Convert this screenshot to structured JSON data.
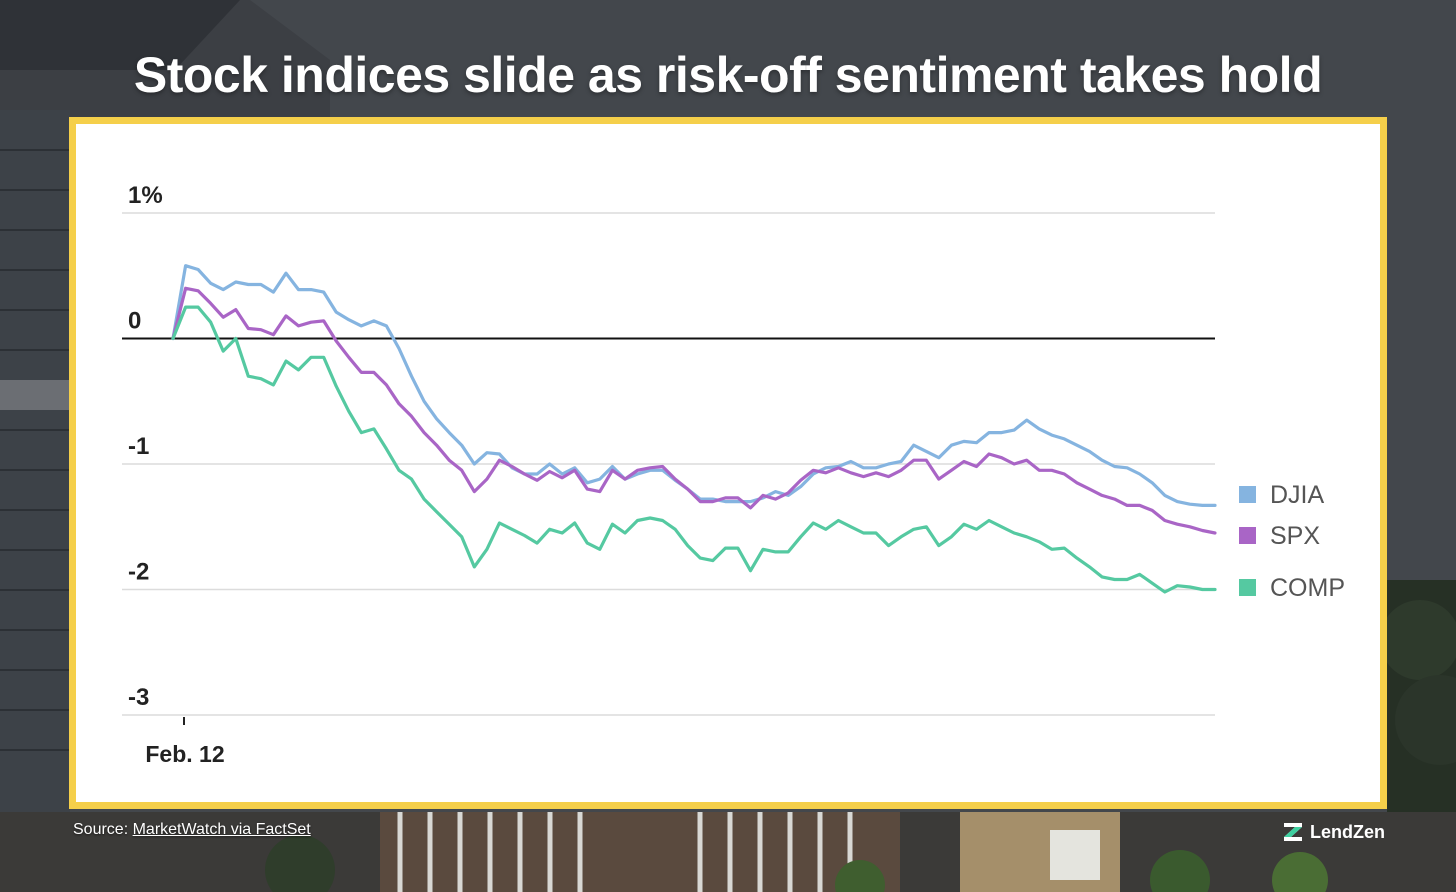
{
  "title": "Stock indices slide as risk-off sentiment takes hold",
  "source": {
    "prefix": "Source: ",
    "link_text": "MarketWatch via FactSet"
  },
  "brand": {
    "name": "LendZen"
  },
  "chart_data": {
    "type": "line",
    "title": "Stock indices slide as risk-off sentiment takes hold",
    "xlabel": "",
    "ylabel": "",
    "ylim": [
      -3,
      1
    ],
    "yticks": [
      {
        "value": 1,
        "label": "1%"
      },
      {
        "value": 0,
        "label": "0"
      },
      {
        "value": -1,
        "label": "-1"
      },
      {
        "value": -2,
        "label": "-2"
      },
      {
        "value": -3,
        "label": "-3"
      }
    ],
    "x_tick_label": "Feb. 12",
    "legend_position": "right",
    "series": [
      {
        "name": "DJIA",
        "color": "#85b4e0",
        "values": [
          0.0,
          0.58,
          0.55,
          0.44,
          0.39,
          0.45,
          0.43,
          0.43,
          0.37,
          0.52,
          0.39,
          0.39,
          0.37,
          0.21,
          0.15,
          0.1,
          0.14,
          0.1,
          -0.08,
          -0.3,
          -0.5,
          -0.64,
          -0.75,
          -0.85,
          -1.0,
          -0.91,
          -0.92,
          -1.03,
          -1.08,
          -1.08,
          -1.0,
          -1.08,
          -1.03,
          -1.15,
          -1.12,
          -1.02,
          -1.12,
          -1.08,
          -1.05,
          -1.05,
          -1.13,
          -1.2,
          -1.28,
          -1.28,
          -1.3,
          -1.3,
          -1.3,
          -1.27,
          -1.22,
          -1.25,
          -1.18,
          -1.08,
          -1.03,
          -1.02,
          -0.98,
          -1.03,
          -1.03,
          -1.0,
          -0.98,
          -0.85,
          -0.9,
          -0.95,
          -0.85,
          -0.82,
          -0.83,
          -0.75,
          -0.75,
          -0.73,
          -0.65,
          -0.72,
          -0.77,
          -0.8,
          -0.85,
          -0.9,
          -0.97,
          -1.02,
          -1.03,
          -1.08,
          -1.15,
          -1.25,
          -1.3,
          -1.32,
          -1.33,
          -1.33
        ]
      },
      {
        "name": "SPX",
        "color": "#a965c6",
        "values": [
          0.0,
          0.4,
          0.38,
          0.28,
          0.17,
          0.23,
          0.08,
          0.07,
          0.03,
          0.18,
          0.1,
          0.13,
          0.14,
          -0.02,
          -0.15,
          -0.27,
          -0.27,
          -0.37,
          -0.52,
          -0.62,
          -0.75,
          -0.85,
          -0.97,
          -1.05,
          -1.22,
          -1.12,
          -0.97,
          -1.02,
          -1.08,
          -1.13,
          -1.06,
          -1.11,
          -1.05,
          -1.2,
          -1.22,
          -1.05,
          -1.12,
          -1.05,
          -1.03,
          -1.02,
          -1.12,
          -1.2,
          -1.3,
          -1.3,
          -1.27,
          -1.27,
          -1.35,
          -1.25,
          -1.28,
          -1.23,
          -1.13,
          -1.05,
          -1.07,
          -1.03,
          -1.07,
          -1.1,
          -1.07,
          -1.1,
          -1.05,
          -0.97,
          -0.97,
          -1.12,
          -1.05,
          -0.98,
          -1.02,
          -0.92,
          -0.95,
          -1.0,
          -0.97,
          -1.05,
          -1.05,
          -1.08,
          -1.15,
          -1.2,
          -1.25,
          -1.28,
          -1.33,
          -1.33,
          -1.37,
          -1.45,
          -1.48,
          -1.5,
          -1.53,
          -1.55
        ]
      },
      {
        "name": "COMP",
        "color": "#55c9a1",
        "values": [
          0.0,
          0.25,
          0.25,
          0.13,
          -0.1,
          0.0,
          -0.3,
          -0.32,
          -0.37,
          -0.18,
          -0.25,
          -0.15,
          -0.15,
          -0.38,
          -0.58,
          -0.75,
          -0.72,
          -0.88,
          -1.05,
          -1.12,
          -1.28,
          -1.38,
          -1.48,
          -1.58,
          -1.82,
          -1.68,
          -1.47,
          -1.52,
          -1.57,
          -1.63,
          -1.52,
          -1.55,
          -1.47,
          -1.63,
          -1.68,
          -1.48,
          -1.55,
          -1.45,
          -1.43,
          -1.45,
          -1.52,
          -1.65,
          -1.75,
          -1.77,
          -1.67,
          -1.67,
          -1.85,
          -1.68,
          -1.7,
          -1.7,
          -1.58,
          -1.47,
          -1.52,
          -1.45,
          -1.5,
          -1.55,
          -1.55,
          -1.65,
          -1.58,
          -1.52,
          -1.5,
          -1.65,
          -1.58,
          -1.48,
          -1.52,
          -1.45,
          -1.5,
          -1.55,
          -1.58,
          -1.62,
          -1.68,
          -1.67,
          -1.75,
          -1.82,
          -1.9,
          -1.92,
          -1.92,
          -1.88,
          -1.95,
          -2.02,
          -1.97,
          -1.98,
          -2.0,
          -2.0
        ]
      }
    ]
  }
}
